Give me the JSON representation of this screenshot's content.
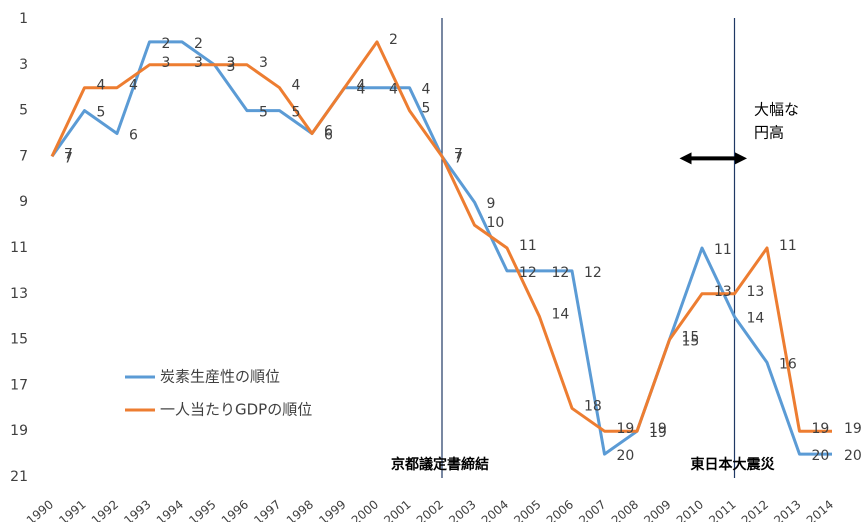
{
  "chart_data": {
    "type": "line",
    "categories": [
      "1990",
      "1991",
      "1992",
      "1993",
      "1994",
      "1995",
      "1996",
      "1997",
      "1998",
      "1999",
      "2000",
      "2001",
      "2002",
      "2003",
      "2004",
      "2005",
      "2006",
      "2007",
      "2008",
      "2009",
      "2010",
      "2011",
      "2012",
      "2013",
      "2014"
    ],
    "series": [
      {
        "name": "炭素生産性の順位",
        "color": "#5b9bd5",
        "values": [
          7,
          5,
          6,
          2,
          2,
          3,
          5,
          5,
          6,
          4,
          4,
          4,
          7,
          9,
          12,
          12,
          12,
          20,
          19,
          15,
          11,
          14,
          16,
          20,
          20
        ]
      },
      {
        "name": "一人当たりGDPの順位",
        "color": "#ed7d31",
        "values": [
          7,
          4,
          4,
          3,
          3,
          3,
          3,
          4,
          6,
          4,
          2,
          5,
          7,
          10,
          11,
          14,
          18,
          19,
          19,
          15,
          13,
          13,
          11,
          19,
          19
        ]
      }
    ],
    "ylim": [
      1,
      21
    ],
    "y_reversed": true,
    "yticks": [
      1,
      3,
      5,
      7,
      9,
      11,
      13,
      15,
      17,
      19,
      21
    ],
    "annotations": [
      {
        "text": "京都議定書締結",
        "x": "2002"
      },
      {
        "text": "東日本大震災",
        "x": "2011"
      }
    ],
    "arrow_note": [
      "大幅な",
      "円高"
    ]
  }
}
